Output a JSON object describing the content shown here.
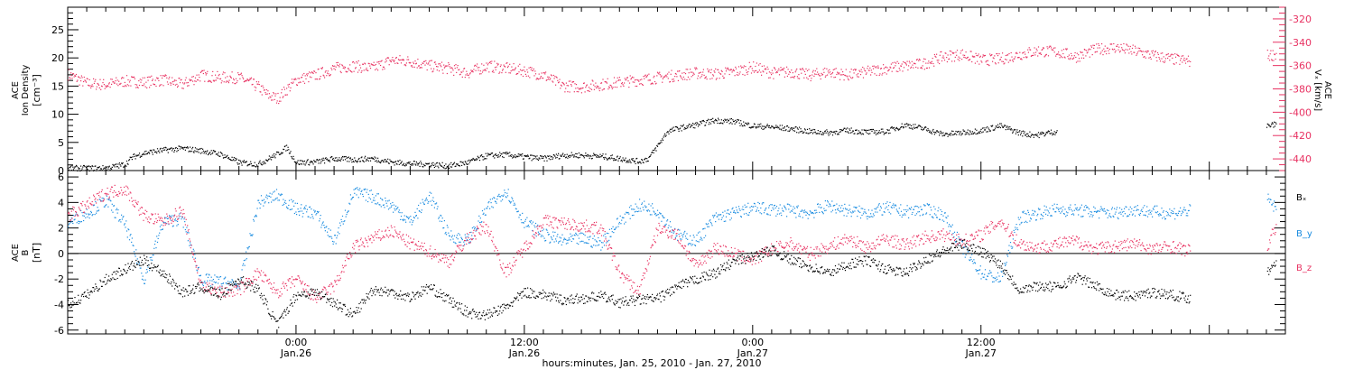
{
  "chart_data": [
    {
      "type": "scatter",
      "panel": "top",
      "ylabel_left": [
        "ACE",
        "Ion Density",
        "[cm⁻³]"
      ],
      "ylabel_right": [
        "ACE",
        "Vₓ [km/s]"
      ],
      "x_range_hours": [
        0,
        64
      ],
      "left_axis": {
        "ylim": [
          0,
          29
        ],
        "ticks": [
          0,
          5,
          10,
          15,
          20,
          25
        ]
      },
      "right_axis": {
        "ylim": [
          -450,
          -310
        ],
        "ticks": [
          -320,
          -340,
          -360,
          -380,
          -400,
          -420,
          -440
        ]
      },
      "series": [
        {
          "name": "Ion Density",
          "axis": "left",
          "color": "#000000",
          "x": [
            0,
            2,
            3,
            3.4,
            4,
            5,
            6,
            7,
            8,
            9,
            10,
            11,
            11.5,
            12,
            13,
            14,
            15,
            16,
            17,
            18,
            19,
            20,
            21,
            22,
            23,
            24,
            25,
            26,
            27,
            28,
            29,
            30,
            30.5,
            31,
            31.5,
            32,
            33,
            34,
            35,
            36,
            37,
            38,
            39,
            40,
            41,
            42,
            43,
            44,
            45,
            46,
            47,
            48,
            49,
            50,
            50.5,
            51,
            51.5,
            52,
            53,
            54,
            55,
            56,
            57,
            58,
            59,
            59.5,
            60,
            61,
            62,
            63,
            63.5
          ],
          "y": [
            0.5,
            0.5,
            1.2,
            2.5,
            3.2,
            3.7,
            4,
            3.6,
            3,
            1.5,
            1.2,
            3,
            4.2,
            1.5,
            1.6,
            2.2,
            2,
            2.2,
            1.6,
            1.3,
            1.2,
            0.9,
            1.5,
            2.7,
            2.9,
            2.5,
            2.2,
            2.8,
            2.8,
            2.6,
            2.2,
            1.7,
            2.2,
            4.5,
            7,
            7.5,
            8.2,
            9,
            8.8,
            8,
            7.8,
            7.5,
            7,
            6.8,
            7.2,
            6.9,
            7,
            8.2,
            7.5,
            6.5,
            6.8,
            7.2,
            8,
            6.8,
            6.5,
            6.4,
            6.8,
            7,
            null,
            null,
            null,
            null,
            null,
            null,
            null,
            null,
            null,
            null,
            null,
            null,
            null
          ],
          "segment2_x": [
            63,
            63.5
          ],
          "segment2_y": [
            8,
            8.3
          ]
        },
        {
          "name": "Vₓ",
          "axis": "right",
          "color": "#e83262",
          "x": [
            0,
            1,
            2,
            3,
            4,
            5,
            6,
            7,
            8,
            9,
            10,
            10.5,
            11,
            12,
            13,
            14,
            15,
            16,
            17,
            18,
            19,
            20,
            21,
            22,
            23,
            24,
            25,
            26,
            27,
            28,
            29,
            30,
            31,
            32,
            33,
            34,
            35,
            36,
            37,
            38,
            39,
            40,
            41,
            42,
            43,
            44,
            45,
            46,
            47,
            48,
            49,
            50,
            51,
            52,
            53,
            54,
            55,
            56,
            57,
            58,
            59,
            60,
            61,
            62,
            63,
            63.5
          ],
          "y": [
            -367,
            -375,
            -376,
            -373,
            -374,
            -372,
            -376,
            -368,
            -370,
            -370,
            -378,
            -385,
            -388,
            -372,
            -368,
            -362,
            -360,
            -362,
            -355,
            -356,
            -360,
            -362,
            -366,
            -360,
            -362,
            -364,
            -368,
            -377,
            -378,
            -376,
            -374,
            -372,
            -370,
            -368,
            -366,
            -367,
            -365,
            -361,
            -366,
            -365,
            -368,
            -365,
            -368,
            -365,
            -362,
            -360,
            -358,
            -352,
            -350,
            -355,
            -354,
            -350,
            -347,
            -348,
            -352,
            -346,
            -344,
            -347,
            -351,
            -354,
            -356,
            -358,
            -360,
            -362,
            -351,
            -350
          ],
          "gaps": [
            [
              59,
              63
            ]
          ]
        }
      ]
    },
    {
      "type": "scatter",
      "panel": "bottom",
      "ylabel_left": [
        "ACE",
        "B",
        "[nT]"
      ],
      "x_range_hours": [
        0,
        64
      ],
      "ylim": [
        -6.3,
        6.5
      ],
      "ticks": [
        -6,
        -4,
        -2,
        0,
        2,
        4,
        6
      ],
      "zero_line": true,
      "series": [
        {
          "name": "Bₓ",
          "color": "#000000",
          "x": [
            0,
            1,
            2,
            3,
            4,
            5,
            6,
            7,
            8,
            9,
            10,
            11,
            12,
            13,
            14,
            15,
            16,
            17,
            18,
            19,
            20,
            21,
            22,
            23,
            24,
            25,
            26,
            27,
            28,
            29,
            30,
            31,
            32,
            33,
            34,
            35,
            36,
            37,
            38,
            39,
            40,
            41,
            42,
            43,
            44,
            45,
            46,
            47,
            48,
            49,
            50,
            51,
            52,
            53,
            54,
            55,
            56,
            57,
            58,
            59,
            60,
            61,
            62,
            63,
            63.5
          ],
          "y": [
            -4,
            -3.2,
            -2,
            -1.2,
            -0.5,
            -1.5,
            -3,
            -2.6,
            -3.2,
            -2,
            -2.8,
            -5.6,
            -3.2,
            -3,
            -3.8,
            -4.8,
            -2.8,
            -3,
            -3.4,
            -2.6,
            -3.6,
            -4.6,
            -4.8,
            -4.2,
            -3,
            -3.2,
            -3.6,
            -3.5,
            -3.3,
            -3.8,
            -3.6,
            -3.5,
            -2.6,
            -2,
            -1.5,
            -0.6,
            -0.2,
            0.3,
            -0.5,
            -1,
            -1.5,
            -0.8,
            -0.5,
            -1.2,
            -1.5,
            -0.5,
            0.2,
            0.8,
            0.2,
            -0.8,
            -2.8,
            -2.5,
            -2.6,
            -1.8,
            -2.5,
            -3.2,
            -3.3,
            -3,
            -3.2,
            -3.5,
            null,
            null,
            null,
            -1.5,
            -0.5
          ],
          "gaps": [
            [
              59,
              62.8
            ]
          ]
        },
        {
          "name": "B_y",
          "color": "#1a8ce0",
          "x": [
            0,
            1,
            2,
            3,
            4,
            5,
            6,
            7,
            8,
            9,
            10,
            11,
            12,
            13,
            14,
            15,
            16,
            17,
            18,
            19,
            20,
            21,
            22,
            23,
            24,
            25,
            26,
            27,
            28,
            29,
            30,
            31,
            32,
            33,
            34,
            35,
            36,
            37,
            38,
            39,
            40,
            41,
            42,
            43,
            44,
            45,
            46,
            47,
            48,
            49,
            50,
            51,
            52,
            53,
            54,
            55,
            56,
            57,
            58,
            59,
            60,
            61,
            62,
            63,
            63.5
          ],
          "y": [
            2.5,
            3.2,
            4.2,
            2.3,
            -2,
            2.5,
            2.8,
            -2,
            -2.2,
            -2.5,
            4,
            4.6,
            3.5,
            3.2,
            1,
            4.8,
            4.5,
            3.8,
            2.5,
            4.6,
            1.5,
            1,
            3.5,
            5,
            2.5,
            1.5,
            1,
            1.2,
            0.8,
            2.6,
            3.8,
            3.4,
            1.5,
            1,
            2.8,
            3.2,
            3.6,
            3.5,
            3.4,
            3.2,
            3.8,
            3.4,
            3.2,
            3.6,
            3.3,
            3.5,
            3.1,
            0.5,
            -1.5,
            -2,
            2.8,
            3.2,
            3.5,
            3.4,
            3.3,
            3.2,
            3.5,
            3.3,
            3.2,
            3.4,
            null,
            null,
            null,
            4.4,
            3.5
          ],
          "gaps": [
            [
              59,
              62.8
            ]
          ]
        },
        {
          "name": "B_z",
          "color": "#e83262",
          "x": [
            0,
            1,
            2,
            3,
            4,
            5,
            6,
            7,
            8,
            9,
            10,
            11,
            12,
            13,
            14,
            15,
            16,
            17,
            18,
            19,
            20,
            21,
            22,
            23,
            24,
            25,
            26,
            27,
            28,
            29,
            30,
            31,
            32,
            33,
            34,
            35,
            36,
            37,
            38,
            39,
            40,
            41,
            42,
            43,
            44,
            45,
            46,
            47,
            48,
            49,
            50,
            51,
            52,
            53,
            54,
            55,
            56,
            57,
            58,
            59,
            60,
            61,
            62,
            63,
            63.5
          ],
          "y": [
            3,
            3.8,
            4.8,
            5.1,
            3,
            2.5,
            3.4,
            -2.5,
            -3,
            -2.8,
            -1.5,
            -3,
            -2,
            -3.5,
            -2.5,
            0.5,
            1.2,
            1.8,
            0.8,
            0.2,
            -0.6,
            1.2,
            2.2,
            -1.5,
            0.5,
            2.6,
            2.4,
            2.2,
            2,
            -1.5,
            -3,
            2,
            1.5,
            -1,
            0.5,
            0,
            -0.5,
            0.4,
            0.8,
            0,
            0.6,
            1.2,
            0.5,
            1.2,
            0.7,
            1.3,
            1.5,
            1,
            1.5,
            2.6,
            0.8,
            0.5,
            0.8,
            1,
            0.4,
            0.6,
            0.8,
            0.4,
            0.6,
            0.2,
            null,
            null,
            null,
            0.5,
            2.2
          ],
          "gaps": [
            [
              59,
              62.8
            ]
          ]
        }
      ]
    }
  ],
  "x_axis": {
    "ticks": [
      {
        "hour": 12,
        "time": "0:00",
        "date": "Jan.26"
      },
      {
        "hour": 24,
        "time": "12:00",
        "date": "Jan.26"
      },
      {
        "hour": 36,
        "time": "0:00",
        "date": "Jan.27"
      },
      {
        "hour": 48,
        "time": "12:00",
        "date": "Jan.27"
      }
    ],
    "title": "hours:minutes, Jan. 25, 2010 - Jan. 27, 2010"
  },
  "legend_bottom": [
    "Bₓ",
    "B_y",
    "B_z"
  ]
}
